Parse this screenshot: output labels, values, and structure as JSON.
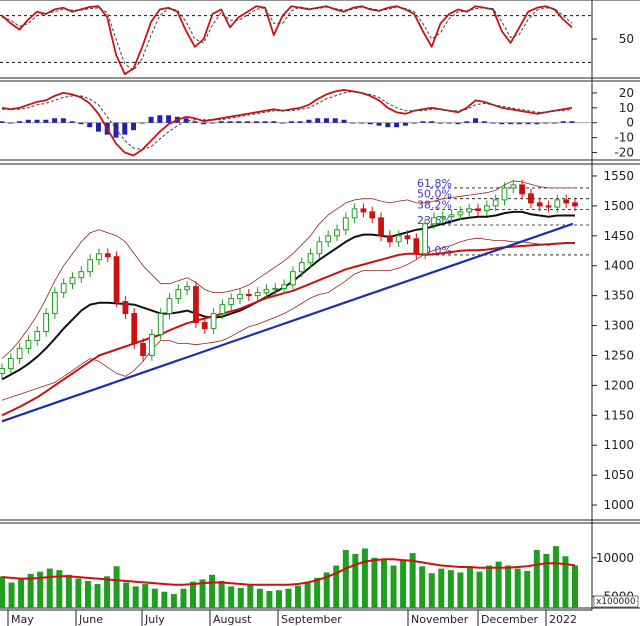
{
  "chart_data": [
    {
      "type": "line",
      "panel": "stochastic",
      "y_ticks": [
        {
          "label": "50",
          "value": 50
        }
      ],
      "ylim": [
        0,
        100
      ],
      "series": [
        {
          "values": [
            80,
            70,
            62,
            75,
            85,
            82,
            88,
            90,
            85,
            88,
            91,
            92,
            78,
            30,
            5,
            12,
            40,
            72,
            88,
            90,
            85,
            60,
            40,
            50,
            82,
            88,
            65,
            78,
            85,
            92,
            90,
            55,
            80,
            92,
            90,
            88,
            90,
            92,
            88,
            85,
            90,
            92,
            88,
            86,
            90,
            92,
            88,
            82,
            60,
            40,
            70,
            82,
            88,
            85,
            92,
            90,
            88,
            60,
            45,
            65,
            85,
            90,
            92,
            88,
            75,
            65
          ],
          "color": "#cc1111"
        },
        {
          "values": [
            78,
            74,
            66,
            70,
            80,
            83,
            85,
            88,
            87,
            87,
            89,
            90,
            84,
            50,
            18,
            10,
            25,
            55,
            80,
            89,
            87,
            72,
            50,
            45,
            68,
            84,
            74,
            74,
            81,
            88,
            90,
            70,
            70,
            86,
            91,
            89,
            89,
            91,
            89,
            87,
            88,
            91,
            89,
            87,
            88,
            91,
            89,
            85,
            70,
            50,
            58,
            76,
            85,
            86,
            89,
            90,
            89,
            72,
            52,
            56,
            75,
            87,
            90,
            89,
            80,
            70
          ],
          "color": "#444444",
          "dashed": true
        }
      ]
    },
    {
      "type": "line",
      "panel": "macd",
      "y_ticks": [
        {
          "label": "20",
          "value": 20
        },
        {
          "label": "10",
          "value": 10
        },
        {
          "label": "0",
          "value": 0
        },
        {
          "label": "-10",
          "value": -10
        },
        {
          "label": "-20",
          "value": -20
        }
      ],
      "ylim": [
        -25,
        28
      ],
      "series": [
        {
          "values": [
            10,
            9,
            10,
            12,
            14,
            15,
            18,
            20,
            19,
            17,
            13,
            6,
            -4,
            -14,
            -20,
            -22,
            -18,
            -12,
            -6,
            -1,
            2,
            4,
            3,
            1,
            2,
            3,
            4,
            5,
            6,
            7,
            8,
            9,
            8,
            9,
            10,
            12,
            16,
            19,
            21,
            22,
            21,
            20,
            18,
            15,
            10,
            7,
            6,
            8,
            9,
            10,
            9,
            8,
            7,
            10,
            15,
            14,
            12,
            10,
            9,
            8,
            7,
            6,
            7,
            8,
            9,
            10
          ],
          "color": "#cc1111"
        },
        {
          "values": [
            9,
            9,
            9,
            10,
            12,
            13,
            15,
            17,
            18,
            18,
            16,
            12,
            4,
            -4,
            -12,
            -17,
            -18,
            -16,
            -11,
            -6,
            -2,
            1,
            2,
            2,
            2,
            2,
            3,
            4,
            5,
            6,
            7,
            8,
            8,
            8,
            9,
            10,
            13,
            16,
            18,
            20,
            21,
            20,
            19,
            17,
            13,
            10,
            8,
            8,
            8,
            9,
            9,
            8,
            8,
            9,
            12,
            13,
            12,
            11,
            10,
            9,
            8,
            7,
            7,
            8,
            8,
            9
          ],
          "color": "#444444",
          "dashed": true
        },
        {
          "values": [
            1,
            0,
            1,
            2,
            2,
            2,
            3,
            3,
            1,
            -1,
            -3,
            -6,
            -8,
            -10,
            -8,
            -5,
            0,
            4,
            5,
            5,
            4,
            3,
            1,
            -1,
            0,
            1,
            1,
            1,
            1,
            1,
            1,
            1,
            0,
            1,
            1,
            2,
            3,
            3,
            3,
            2,
            0,
            0,
            -1,
            -2,
            -3,
            -3,
            -2,
            0,
            1,
            1,
            0,
            0,
            -1,
            1,
            3,
            1,
            0,
            -1,
            -1,
            -1,
            -1,
            -1,
            0,
            0,
            1,
            1
          ],
          "color": "#2222aa",
          "kind": "histogram"
        }
      ]
    },
    {
      "type": "candlestick",
      "panel": "price",
      "y_ticks": [
        {
          "label": "1550",
          "value": 1550
        },
        {
          "label": "1500",
          "value": 1500
        },
        {
          "label": "1450",
          "value": 1450
        },
        {
          "label": "1400",
          "value": 1400
        },
        {
          "label": "1350",
          "value": 1350
        },
        {
          "label": "1300",
          "value": 1300
        },
        {
          "label": "1250",
          "value": 1250
        },
        {
          "label": "1200",
          "value": 1200
        },
        {
          "label": "1150",
          "value": 1150
        },
        {
          "label": "1100",
          "value": 1100
        },
        {
          "label": "1050",
          "value": 1050
        },
        {
          "label": "1000",
          "value": 1000
        }
      ],
      "ylim": [
        975,
        1570
      ],
      "closes": [
        1228,
        1245,
        1262,
        1275,
        1290,
        1320,
        1355,
        1370,
        1380,
        1390,
        1410,
        1420,
        1415,
        1340,
        1320,
        1270,
        1250,
        1285,
        1320,
        1345,
        1360,
        1365,
        1305,
        1295,
        1320,
        1335,
        1345,
        1352,
        1350,
        1355,
        1360,
        1362,
        1368,
        1390,
        1405,
        1420,
        1440,
        1450,
        1460,
        1480,
        1495,
        1490,
        1480,
        1450,
        1440,
        1450,
        1445,
        1420,
        1470,
        1480,
        1482,
        1485,
        1490,
        1495,
        1492,
        1500,
        1510,
        1530,
        1535,
        1520,
        1505,
        1500,
        1498,
        1510,
        1505,
        1500
      ],
      "overlay_lines": [
        {
          "values": [
            1210,
            1218,
            1226,
            1236,
            1248,
            1262,
            1278,
            1295,
            1310,
            1325,
            1335,
            1338,
            1338,
            1337,
            1336,
            1335,
            1330,
            1325,
            1320,
            1320,
            1322,
            1325,
            1320,
            1315,
            1313,
            1315,
            1320,
            1325,
            1332,
            1340,
            1348,
            1356,
            1364,
            1374,
            1386,
            1398,
            1410,
            1420,
            1430,
            1440,
            1448,
            1452,
            1452,
            1450,
            1448,
            1452,
            1456,
            1460,
            1462,
            1466,
            1470,
            1474,
            1478,
            1480,
            1482,
            1482,
            1484,
            1488,
            1490,
            1490,
            1486,
            1484,
            1482,
            1484,
            1484,
            1484
          ],
          "color": "#111111"
        },
        {
          "values": [
            1150,
            1157,
            1164,
            1172,
            1180,
            1190,
            1200,
            1210,
            1220,
            1230,
            1240,
            1250,
            1255,
            1260,
            1265,
            1270,
            1275,
            1280,
            1285,
            1292,
            1298,
            1304,
            1308,
            1312,
            1316,
            1320,
            1324,
            1328,
            1334,
            1340,
            1346,
            1350,
            1354,
            1358,
            1364,
            1370,
            1376,
            1382,
            1388,
            1394,
            1398,
            1402,
            1406,
            1410,
            1414,
            1418,
            1420,
            1420,
            1418,
            1419,
            1421,
            1423,
            1425,
            1426,
            1426,
            1427,
            1429,
            1431,
            1432,
            1433,
            1434,
            1435,
            1436,
            1437,
            1438,
            1438
          ],
          "color": "#cc1111"
        },
        {
          "values": [
            1245,
            1258,
            1275,
            1295,
            1318,
            1345,
            1375,
            1400,
            1420,
            1440,
            1455,
            1460,
            1455,
            1450,
            1440,
            1420,
            1400,
            1385,
            1370,
            1370,
            1375,
            1380,
            1372,
            1360,
            1355,
            1355,
            1358,
            1362,
            1368,
            1378,
            1388,
            1398,
            1408,
            1420,
            1435,
            1450,
            1470,
            1485,
            1495,
            1505,
            1510,
            1512,
            1512,
            1508,
            1505,
            1508,
            1510,
            1505,
            1505,
            1508,
            1512,
            1514,
            1516,
            1518,
            1520,
            1522,
            1526,
            1535,
            1542,
            1540,
            1536,
            1532,
            1530,
            1530,
            1530,
            1530
          ],
          "color": "#992222",
          "width": 0.8
        },
        {
          "values": [
            1175,
            1180,
            1185,
            1190,
            1195,
            1200,
            1205,
            1215,
            1225,
            1235,
            1245,
            1240,
            1230,
            1220,
            1215,
            1225,
            1240,
            1260,
            1275,
            1275,
            1270,
            1270,
            1268,
            1270,
            1272,
            1275,
            1282,
            1290,
            1298,
            1302,
            1308,
            1314,
            1320,
            1328,
            1337,
            1346,
            1352,
            1355,
            1365,
            1375,
            1386,
            1392,
            1392,
            1392,
            1392,
            1396,
            1402,
            1410,
            1420,
            1426,
            1430,
            1434,
            1440,
            1444,
            1446,
            1444,
            1442,
            1442,
            1440,
            1440,
            1438,
            1436,
            1434,
            1438,
            1438,
            1438
          ],
          "color": "#992222",
          "width": 0.8
        },
        {
          "values": [
            1140,
            1150,
            1160,
            1170,
            1180,
            1190,
            1200,
            1210,
            1220,
            1230,
            1240,
            1250,
            1260,
            1270,
            1280,
            1290,
            1300,
            1310,
            1320,
            1330,
            1340,
            1350,
            1360,
            1370,
            1380,
            1390,
            1400,
            1410,
            1420,
            1430,
            1440,
            1450,
            1460,
            1470
          ],
          "color": "#1c2fb0",
          "width": 2.2,
          "span": [
            0,
            0.74
          ],
          "x_start": 0,
          "x_end": 0.9
        }
      ],
      "fibonacci": [
        {
          "label": "61.8%",
          "value": 1530
        },
        {
          "label": "50.0%",
          "value": 1512
        },
        {
          "label": "38.2%",
          "value": 1494
        },
        {
          "label": "23.6%",
          "value": 1468
        },
        {
          "label": "0.0%",
          "value": 1418
        }
      ]
    },
    {
      "type": "bar",
      "panel": "volume",
      "y_ticks": [
        {
          "label": "10000",
          "value": 10000
        },
        {
          "label": "5000",
          "value": 5000
        }
      ],
      "unit_label": "x100000",
      "ylim": [
        3500,
        14500
      ],
      "values": [
        7600,
        6800,
        7200,
        7900,
        8200,
        8600,
        8400,
        7800,
        7300,
        7000,
        6600,
        7600,
        8900,
        6800,
        6300,
        6600,
        6000,
        5600,
        5300,
        6000,
        6900,
        7200,
        7800,
        7000,
        6300,
        6100,
        6400,
        6000,
        5700,
        5800,
        6000,
        6400,
        6900,
        7400,
        8100,
        9000,
        11000,
        10500,
        11200,
        10000,
        9900,
        9000,
        9600,
        10600,
        8900,
        8000,
        8600,
        8400,
        8100,
        8700,
        8200,
        9000,
        9500,
        9000,
        8600,
        8300,
        11000,
        10500,
        11500,
        10200,
        9000
      ],
      "ma": [
        7500,
        7400,
        7300,
        7300,
        7400,
        7500,
        7600,
        7600,
        7500,
        7400,
        7300,
        7200,
        7100,
        7000,
        6900,
        6800,
        6700,
        6600,
        6500,
        6500,
        6600,
        6700,
        6800,
        6800,
        6700,
        6600,
        6500,
        6500,
        6500,
        6500,
        6500,
        6600,
        6800,
        7100,
        7500,
        8000,
        8600,
        9100,
        9500,
        9700,
        9800,
        9800,
        9700,
        9600,
        9400,
        9200,
        9000,
        8900,
        8800,
        8800,
        8700,
        8700,
        8700,
        8700,
        8800,
        8900,
        9100,
        9300,
        9300,
        9200,
        9000
      ],
      "bar_color": "#1f9e1f",
      "ma_color": "#cc1111"
    }
  ],
  "x_axis": {
    "months": [
      "May",
      "June",
      "July",
      "August",
      "September",
      "November",
      "December",
      "2022"
    ]
  }
}
